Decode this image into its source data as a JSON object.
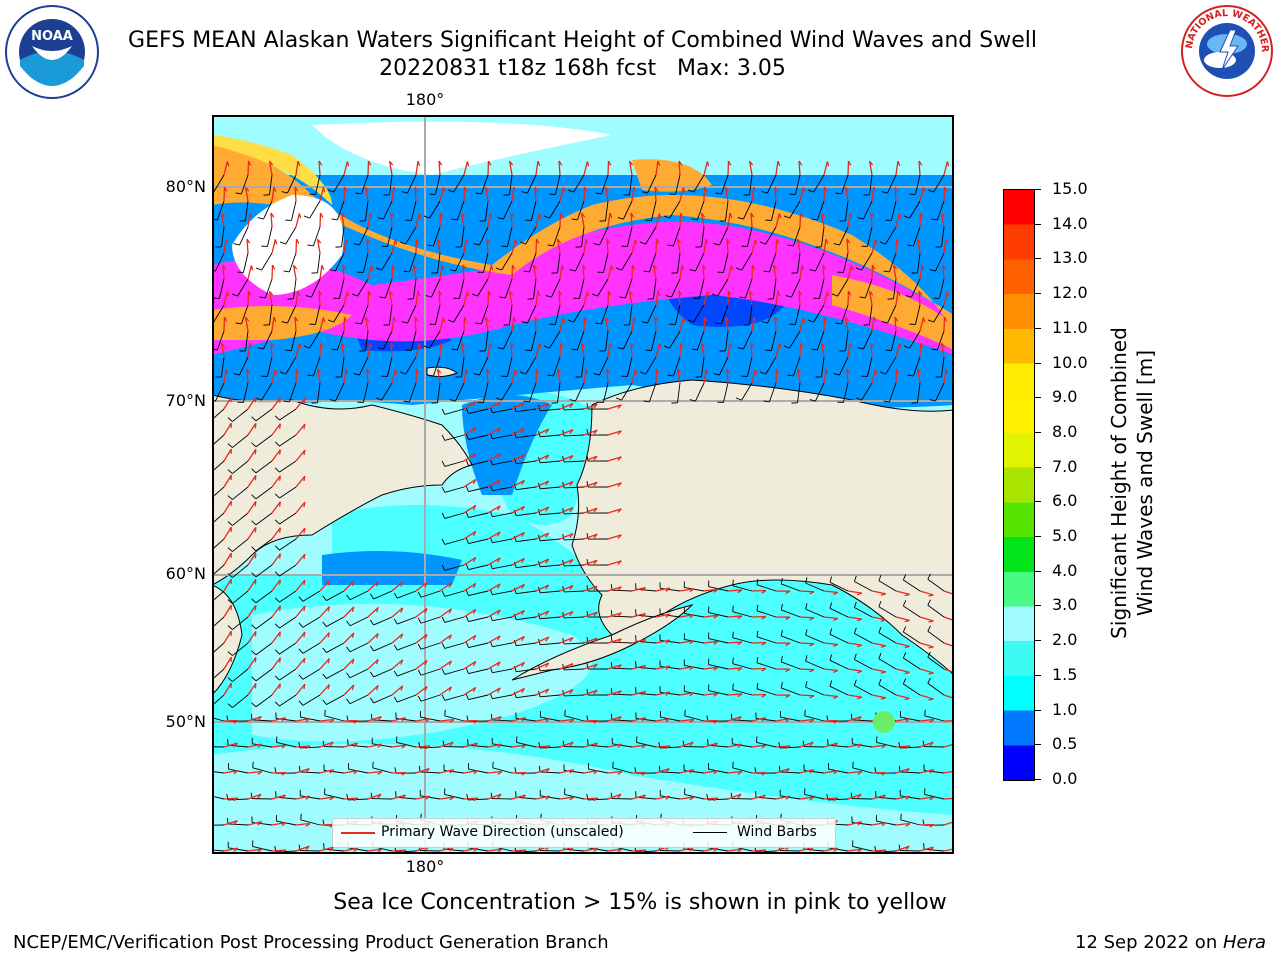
{
  "header": {
    "title": "GEFS MEAN Alaskan Waters Significant Height of Combined Wind Waves and Swell",
    "subtitle": "20220831 t18z 168h fcst   Max: 3.05"
  },
  "logos": {
    "left": {
      "icon": "noaa-logo-icon",
      "text": "NOAA"
    },
    "right": {
      "icon": "nws-logo-icon",
      "ring_text": "NATIONAL WEATHER SERVICE"
    }
  },
  "map": {
    "lon_labels": {
      "top": "180°",
      "bottom": "180°"
    },
    "lat_labels": [
      "80°N",
      "70°N",
      "60°N",
      "50°N"
    ],
    "colors": {
      "land": "#efecdc",
      "ocean_low": "#0047ff",
      "ocean_mid": "#0096ff",
      "ocean_light": "#4dffff",
      "ocean_pale": "#9ffcff",
      "ice_pink": "#ff33ff",
      "ice_orange": "#ffaa33",
      "ice_yellow": "#ffdd44",
      "wave_arrow": "#e8281b",
      "wind_barb": "#000000"
    }
  },
  "legend": {
    "wave_label": "Primary Wave Direction (unscaled)",
    "wind_label": "Wind Barbs",
    "wave_color": "#e8281b",
    "wind_color": "#000000"
  },
  "colorbar": {
    "title_line1": "Significant Height of Combined",
    "title_line2": "Wind Waves and Swell [m]",
    "ticks": [
      "0.0",
      "0.5",
      "1.0",
      "1.5",
      "2.0",
      "3.0",
      "4.0",
      "5.0",
      "6.0",
      "7.0",
      "8.0",
      "9.0",
      "10.0",
      "11.0",
      "12.0",
      "13.0",
      "14.0",
      "15.0"
    ],
    "colors": [
      "#0000ff",
      "#0078ff",
      "#00ffff",
      "#3dfaf2",
      "#a0fcff",
      "#46fa83",
      "#00e419",
      "#55e400",
      "#a8e400",
      "#e0f300",
      "#fff000",
      "#ffec00",
      "#ffb900",
      "#ff8e00",
      "#ff6000",
      "#ff3d00",
      "#ff0000"
    ]
  },
  "note": "Sea Ice Concentration > 15% is shown in pink to yellow",
  "footer": {
    "left": "NCEP/EMC/Verification Post Processing Product Generation Branch",
    "date": "12 Sep 2022 on ",
    "machine": "Hera"
  }
}
